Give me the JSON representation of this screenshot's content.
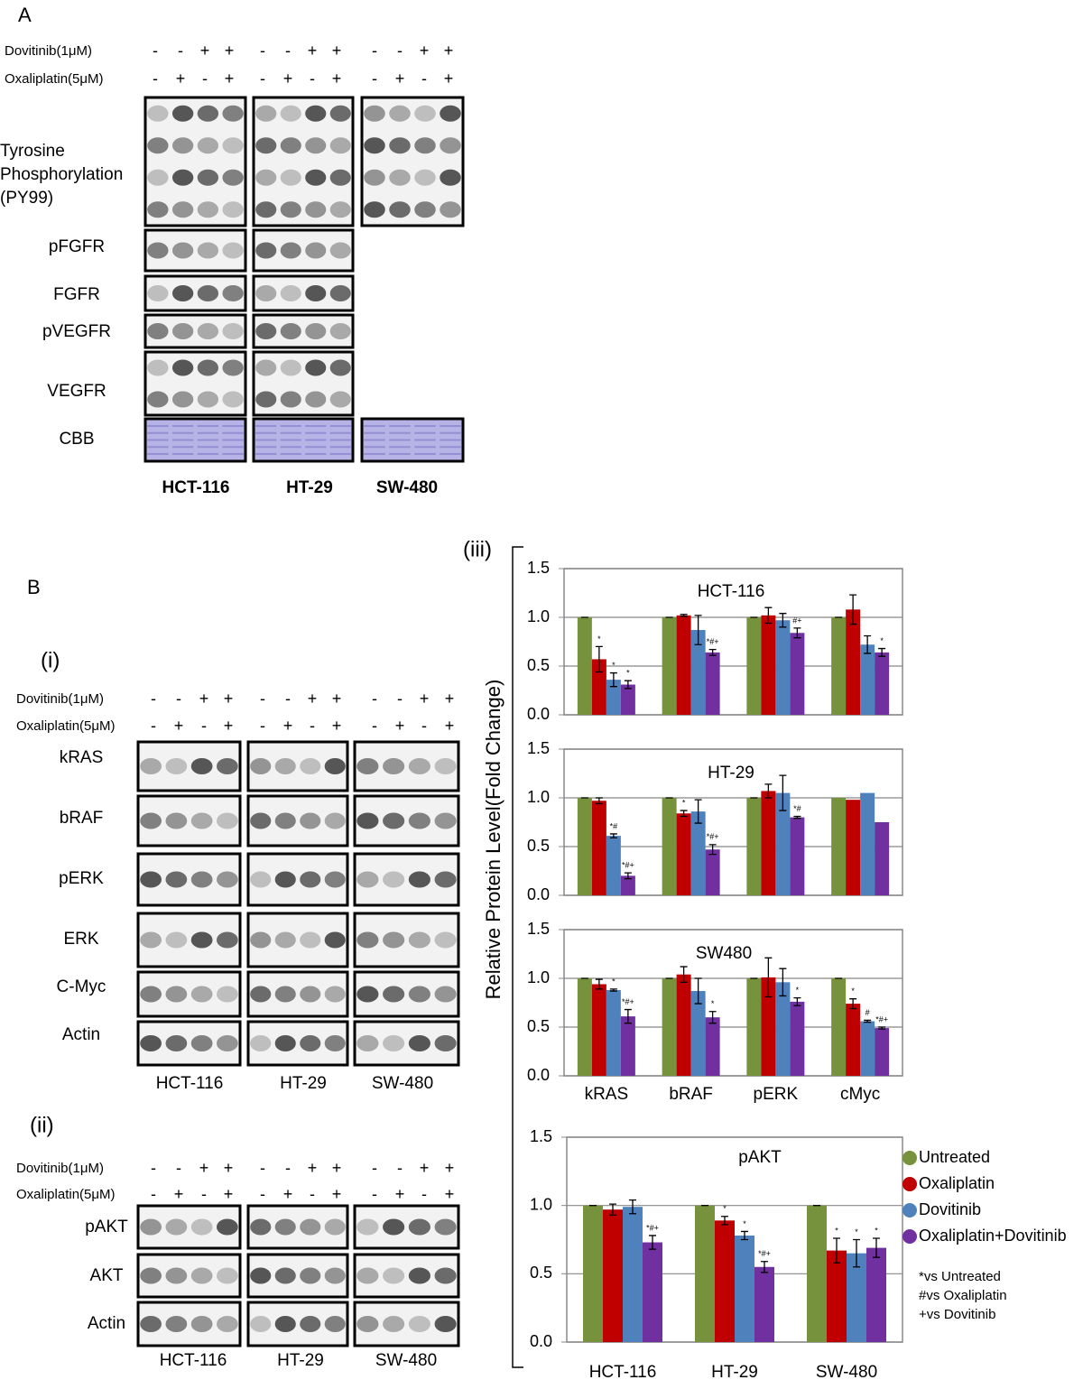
{
  "panel_a": {
    "label": "A",
    "treatments": [
      {
        "name": "Dovitinib(1μM)",
        "signs": [
          "-",
          "-",
          "+",
          "+"
        ]
      },
      {
        "name": "Oxaliplatin(5μM)",
        "signs": [
          "-",
          "+",
          "-",
          "+"
        ]
      }
    ],
    "py99_label": [
      "Tyrosine",
      "Phosphorylation",
      "(PY99)"
    ],
    "rows": [
      "pFGFR",
      "FGFR",
      "pVEGFR",
      "VEGFR",
      "CBB"
    ],
    "cell_lines": [
      "HCT-116",
      "HT-29",
      "SW-480"
    ]
  },
  "panel_b": {
    "label": "B",
    "sub_i": "(i)",
    "sub_ii": "(ii)",
    "sub_iii": "(iii)",
    "treatments": [
      {
        "name": "Dovitinib(1μM)",
        "signs": [
          "-",
          "-",
          "+",
          "+"
        ]
      },
      {
        "name": "Oxaliplatin(5μM)",
        "signs": [
          "-",
          "+",
          "-",
          "+"
        ]
      }
    ],
    "rows_i": [
      "kRAS",
      "bRAF",
      "pERK",
      "ERK",
      "C-Myc",
      "Actin"
    ],
    "rows_ii": [
      "pAKT",
      "AKT",
      "Actin"
    ],
    "cell_lines": [
      "HCT-116",
      "HT-29",
      "SW-480"
    ]
  },
  "shared_y_label": "Relative Protein Level(Fold Change)",
  "chart_data": [
    {
      "type": "bar",
      "title": "HCT-116",
      "categories": [
        null,
        null,
        null,
        null
      ],
      "ylim": [
        0,
        1.5
      ],
      "yticks": [
        {
          "value": 0,
          "label": "0.0"
        },
        {
          "value": 0.5,
          "label": "0.5"
        },
        {
          "value": 1,
          "label": "1.0"
        },
        {
          "value": 1.5,
          "label": "1.5"
        }
      ],
      "grid": true,
      "series": [
        {
          "name": "Untreated",
          "color": "#76923c",
          "values": [
            1,
            1,
            1,
            1
          ],
          "errors": [
            0,
            0,
            0,
            0
          ],
          "annotations": [
            null,
            null,
            null,
            null
          ]
        },
        {
          "name": "Oxaliplatin",
          "color": "#c00000",
          "values": [
            0.57,
            1.02,
            1.02,
            1.08
          ],
          "errors": [
            0.13,
            0.01,
            0.08,
            0.15
          ],
          "annotations": [
            "*",
            null,
            null,
            null
          ]
        },
        {
          "name": "Dovitinib",
          "color": "#4f81bd",
          "values": [
            0.36,
            0.87,
            0.97,
            0.72
          ],
          "errors": [
            0.07,
            0.15,
            0.07,
            0.09
          ],
          "annotations": [
            "*",
            null,
            null,
            null
          ]
        },
        {
          "name": "Oxaliplatin+Dovitinib",
          "color": "#7030a0",
          "values": [
            0.31,
            0.64,
            0.84,
            0.64
          ],
          "errors": [
            0.04,
            0.03,
            0.05,
            0.04
          ],
          "annotations": [
            "*",
            "*#+",
            "#+",
            "*"
          ]
        }
      ]
    },
    {
      "type": "bar",
      "title": "HT-29",
      "categories": [
        null,
        null,
        null,
        null
      ],
      "ylim": [
        0,
        1.5
      ],
      "yticks": [
        {
          "value": 0,
          "label": "0.0"
        },
        {
          "value": 0.5,
          "label": "0.5"
        },
        {
          "value": 1,
          "label": "1.0"
        },
        {
          "value": 1.5,
          "label": "1.5"
        }
      ],
      "grid": true,
      "series": [
        {
          "name": "Untreated",
          "color": "#76923c",
          "values": [
            1,
            1,
            1,
            1
          ],
          "errors": [
            0,
            0,
            0,
            null
          ],
          "annotations": [
            null,
            null,
            null,
            null
          ]
        },
        {
          "name": "Oxaliplatin",
          "color": "#c00000",
          "values": [
            0.97,
            0.84,
            1.07,
            0.98
          ],
          "errors": [
            0.03,
            0.03,
            0.07,
            null
          ],
          "annotations": [
            null,
            "*",
            null,
            null
          ]
        },
        {
          "name": "Dovitinib",
          "color": "#4f81bd",
          "values": [
            0.61,
            0.86,
            1.05,
            1.05
          ],
          "errors": [
            0.02,
            0.12,
            0.18,
            null
          ],
          "annotations": [
            "*#",
            null,
            null,
            null
          ]
        },
        {
          "name": "Oxaliplatin+Dovitinib",
          "color": "#7030a0",
          "values": [
            0.2,
            0.47,
            0.8,
            0.75
          ],
          "errors": [
            0.03,
            0.05,
            0.01,
            null
          ],
          "annotations": [
            "*#+",
            "*#+",
            "*#",
            null
          ]
        }
      ]
    },
    {
      "type": "bar",
      "title": "SW480",
      "categories": [
        "kRAS",
        "bRAF",
        "pERK",
        "cMyc"
      ],
      "ylim": [
        0,
        1.5
      ],
      "yticks": [
        {
          "value": 0,
          "label": "0.0"
        },
        {
          "value": 0.5,
          "label": "0.5"
        },
        {
          "value": 1,
          "label": "1.0"
        },
        {
          "value": 1.5,
          "label": "1.5"
        }
      ],
      "grid": true,
      "series": [
        {
          "name": "Untreated",
          "color": "#76923c",
          "values": [
            1,
            1,
            1,
            1
          ],
          "errors": [
            0,
            0,
            0,
            0
          ],
          "annotations": [
            null,
            null,
            null,
            null
          ]
        },
        {
          "name": "Oxaliplatin",
          "color": "#c00000",
          "values": [
            0.94,
            1.04,
            1.01,
            0.74
          ],
          "errors": [
            0.05,
            0.08,
            0.2,
            0.05
          ],
          "annotations": [
            null,
            null,
            null,
            "*"
          ]
        },
        {
          "name": "Dovitinib",
          "color": "#4f81bd",
          "values": [
            0.88,
            0.87,
            0.96,
            0.56
          ],
          "errors": [
            0.01,
            0.13,
            0.14,
            0.01
          ],
          "annotations": [
            "*",
            null,
            null,
            "#"
          ]
        },
        {
          "name": "Oxaliplatin+Dovitinib",
          "color": "#7030a0",
          "values": [
            0.61,
            0.6,
            0.76,
            0.49
          ],
          "errors": [
            0.07,
            0.06,
            0.04,
            0.01
          ],
          "annotations": [
            "*#+",
            "*",
            "*",
            "*#+"
          ]
        }
      ]
    },
    {
      "type": "bar",
      "title": "pAKT",
      "categories": [
        "HCT-116",
        "HT-29",
        "SW-480"
      ],
      "ylim": [
        0,
        1.5
      ],
      "yticks": [
        {
          "value": 0,
          "label": "0.0"
        },
        {
          "value": 0.5,
          "label": "0.5"
        },
        {
          "value": 1,
          "label": "1.0"
        },
        {
          "value": 1.5,
          "label": "1.5"
        }
      ],
      "grid": true,
      "legend": "right",
      "notes": [
        "*vs Untreated",
        "#vs Oxaliplatin",
        "+vs Dovitinib"
      ],
      "series": [
        {
          "name": "Untreated",
          "color": "#76923c",
          "values": [
            1,
            1,
            1
          ],
          "errors": [
            0,
            0,
            0
          ],
          "annotations": [
            null,
            null,
            null
          ]
        },
        {
          "name": "Oxaliplatin",
          "color": "#c00000",
          "values": [
            0.97,
            0.89,
            0.67
          ],
          "errors": [
            0.04,
            0.03,
            0.09
          ],
          "annotations": [
            null,
            "*",
            "*"
          ]
        },
        {
          "name": "Dovitinib",
          "color": "#4f81bd",
          "values": [
            0.99,
            0.78,
            0.65
          ],
          "errors": [
            0.05,
            0.03,
            0.1
          ],
          "annotations": [
            null,
            "*",
            "*"
          ]
        },
        {
          "name": "Oxaliplatin+Dovitinib",
          "color": "#7030a0",
          "values": [
            0.73,
            0.55,
            0.69
          ],
          "errors": [
            0.05,
            0.04,
            0.07
          ],
          "annotations": [
            "*#+",
            "*#+",
            "*"
          ]
        }
      ]
    }
  ]
}
